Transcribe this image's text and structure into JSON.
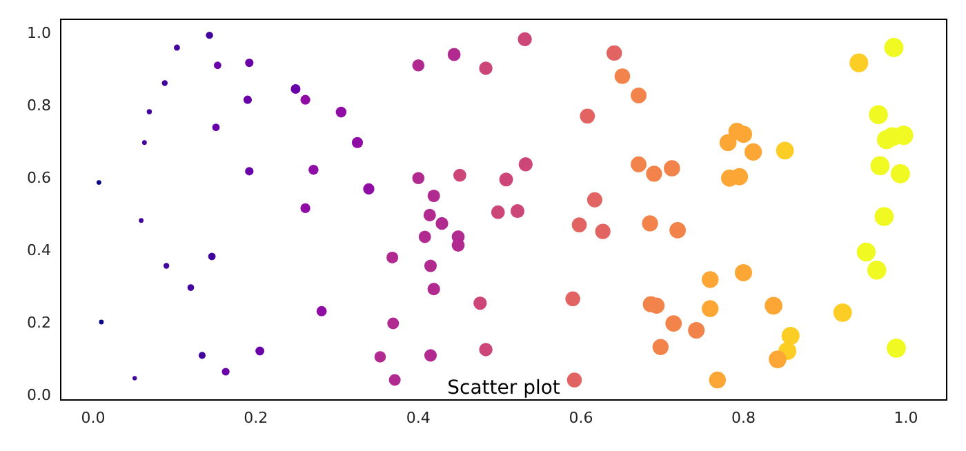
{
  "chart_data": {
    "type": "bubble",
    "title": "Scatter plot",
    "xlim": [
      -0.04,
      1.05
    ],
    "ylim": [
      -0.01,
      1.04
    ],
    "xticks": [
      {
        "value": 0,
        "label": "0.0"
      },
      {
        "value": 0.2,
        "label": "0.2"
      },
      {
        "value": 0.4,
        "label": "0.4"
      },
      {
        "value": 0.6,
        "label": "0.6"
      },
      {
        "value": 0.8,
        "label": "0.8"
      },
      {
        "value": 1,
        "label": "1.0"
      }
    ],
    "yticks": [
      {
        "value": 0,
        "label": "0.0"
      },
      {
        "value": 0.2,
        "label": "0.2"
      },
      {
        "value": 0.4,
        "label": "0.4"
      },
      {
        "value": 0.6,
        "label": "0.6"
      },
      {
        "value": 0.8,
        "label": "0.8"
      },
      {
        "value": 1,
        "label": "1.0"
      }
    ],
    "x": [
      0.007,
      0.01,
      0.051,
      0.059,
      0.063,
      0.069,
      0.088,
      0.09,
      0.103,
      0.12,
      0.134,
      0.143,
      0.146,
      0.151,
      0.153,
      0.163,
      0.19,
      0.192,
      0.192,
      0.205,
      0.249,
      0.261,
      0.261,
      0.271,
      0.281,
      0.305,
      0.325,
      0.339,
      0.368,
      0.369,
      0.353,
      0.371,
      0.4,
      0.4,
      0.419,
      0.414,
      0.429,
      0.408,
      0.415,
      0.419,
      0.415,
      0.444,
      0.451,
      0.449,
      0.449,
      0.476,
      0.483,
      0.483,
      0.498,
      0.508,
      0.522,
      0.532,
      0.531,
      0.59,
      0.592,
      0.598,
      0.608,
      0.617,
      0.627,
      0.641,
      0.651,
      0.671,
      0.671,
      0.69,
      0.712,
      0.685,
      0.719,
      0.686,
      0.693,
      0.714,
      0.698,
      0.742,
      0.759,
      0.759,
      0.768,
      0.781,
      0.792,
      0.8,
      0.783,
      0.795,
      0.812,
      0.8,
      0.851,
      0.837,
      0.858,
      0.854,
      0.842,
      0.922,
      0.942,
      0.985,
      0.966,
      0.976,
      0.983,
      0.997,
      0.968,
      0.993,
      0.973,
      0.951,
      0.964,
      0.988
    ],
    "values": [
      0.59,
      0.205,
      0.05,
      0.485,
      0.7,
      0.785,
      0.864,
      0.36,
      0.962,
      0.3,
      0.113,
      0.996,
      0.386,
      0.742,
      0.913,
      0.068,
      0.818,
      0.92,
      0.621,
      0.125,
      0.848,
      0.818,
      0.519,
      0.625,
      0.235,
      0.784,
      0.7,
      0.572,
      0.383,
      0.201,
      0.109,
      0.045,
      0.913,
      0.602,
      0.553,
      0.5,
      0.477,
      0.44,
      0.36,
      0.296,
      0.113,
      0.943,
      0.61,
      0.44,
      0.417,
      0.257,
      0.905,
      0.129,
      0.508,
      0.598,
      0.511,
      0.64,
      0.985,
      0.269,
      0.045,
      0.473,
      0.773,
      0.542,
      0.455,
      0.947,
      0.883,
      0.83,
      0.64,
      0.614,
      0.629,
      0.477,
      0.458,
      0.254,
      0.25,
      0.201,
      0.136,
      0.182,
      0.322,
      0.242,
      0.045,
      0.7,
      0.731,
      0.723,
      0.602,
      0.606,
      0.674,
      0.341,
      0.678,
      0.25,
      0.167,
      0.125,
      0.102,
      0.231,
      0.92,
      0.962,
      0.777,
      0.708,
      0.716,
      0.72,
      0.636,
      0.614,
      0.496,
      0.398,
      0.348,
      0.133
    ],
    "sizes": [
      0.06,
      0.06,
      0.05,
      0.06,
      0.06,
      0.07,
      0.09,
      0.09,
      0.1,
      0.12,
      0.13,
      0.14,
      0.15,
      0.15,
      0.15,
      0.16,
      0.19,
      0.19,
      0.19,
      0.21,
      0.25,
      0.26,
      0.26,
      0.27,
      0.28,
      0.31,
      0.33,
      0.34,
      0.37,
      0.37,
      0.35,
      0.37,
      0.4,
      0.4,
      0.42,
      0.42,
      0.43,
      0.41,
      0.42,
      0.42,
      0.42,
      0.45,
      0.45,
      0.45,
      0.45,
      0.48,
      0.48,
      0.48,
      0.5,
      0.51,
      0.52,
      0.53,
      0.53,
      0.59,
      0.59,
      0.6,
      0.61,
      0.62,
      0.63,
      0.64,
      0.65,
      0.67,
      0.67,
      0.69,
      0.71,
      0.69,
      0.72,
      0.69,
      0.7,
      0.72,
      0.7,
      0.74,
      0.76,
      0.76,
      0.77,
      0.78,
      0.79,
      0.8,
      0.79,
      0.8,
      0.81,
      0.8,
      0.85,
      0.84,
      0.86,
      0.86,
      0.84,
      0.92,
      0.94,
      0.99,
      0.97,
      0.98,
      0.99,
      1.0,
      0.97,
      1.0,
      0.98,
      0.95,
      0.97,
      0.99
    ],
    "colors": [
      "#0d0887",
      "#0d0887",
      "#41049d",
      "#41049d",
      "#41049d",
      "#41049d",
      "#41049d",
      "#41049d",
      "#41049d",
      "#41049d",
      "#41049d",
      "#41049d",
      "#41049d",
      "#6a00a8",
      "#6a00a8",
      "#6a00a8",
      "#6a00a8",
      "#6a00a8",
      "#6a00a8",
      "#6a00a8",
      "#6a00a8",
      "#8f0da4",
      "#8f0da4",
      "#8f0da4",
      "#8f0da4",
      "#8f0da4",
      "#8f0da4",
      "#8f0da4",
      "#b12a90",
      "#b12a90",
      "#b12a90",
      "#b12a90",
      "#b12a90",
      "#b12a90",
      "#b12a90",
      "#b12a90",
      "#b12a90",
      "#b12a90",
      "#b12a90",
      "#b12a90",
      "#b12a90",
      "#b12a90",
      "#cc4778",
      "#b12a90",
      "#b12a90",
      "#cc4778",
      "#cc4778",
      "#cc4778",
      "#cc4778",
      "#cc4778",
      "#cc4778",
      "#cc4778",
      "#cc4778",
      "#e16462",
      "#e16462",
      "#e16462",
      "#e16462",
      "#e16462",
      "#e16462",
      "#e16462",
      "#f2844b",
      "#f2844b",
      "#f2844b",
      "#f2844b",
      "#f2844b",
      "#f2844b",
      "#f2844b",
      "#f2844b",
      "#f2844b",
      "#f2844b",
      "#f2844b",
      "#f2844b",
      "#fca636",
      "#fca636",
      "#fca636",
      "#fca636",
      "#fca636",
      "#fca636",
      "#fca636",
      "#fca636",
      "#fca636",
      "#fca636",
      "#fcce25",
      "#fca636",
      "#fcce25",
      "#fcce25",
      "#fca636",
      "#fcce25",
      "#fcce25",
      "#f0f921",
      "#f0f921",
      "#f0f921",
      "#f0f921",
      "#f0f921",
      "#f0f921",
      "#f0f921",
      "#f0f921",
      "#f0f921",
      "#f0f921",
      "#f0f921"
    ]
  }
}
